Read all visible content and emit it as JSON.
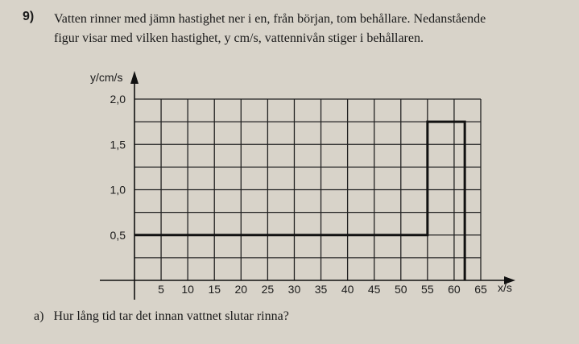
{
  "question": {
    "number": "9)",
    "text_line1": "Vatten rinner med jämn hastighet ner i en, från början, tom behållare. Nedanstående",
    "text_line2": "figur visar med vilken hastighet, y cm/s, vattennivån stiger i behållaren.",
    "part_a_label": "a)",
    "part_a_text": "Hur lång tid tar det innan vattnet slutar rinna?"
  },
  "chart_data": {
    "type": "line",
    "xlabel": "x/s",
    "ylabel": "y/cm/s",
    "xlim": [
      0,
      65
    ],
    "ylim": [
      0,
      2
    ],
    "grid": true,
    "x_ticks": [
      5,
      10,
      15,
      20,
      25,
      30,
      35,
      40,
      45,
      50,
      55,
      60,
      65
    ],
    "x_tick_labels": [
      "5",
      "10",
      "15",
      "20",
      "25",
      "30",
      "35",
      "40",
      "45",
      "50",
      "55",
      "60",
      "65"
    ],
    "y_ticks": [
      0.5,
      1.0,
      1.5,
      2.0
    ],
    "y_tick_labels": [
      "0,5",
      "1,0",
      "1,5",
      "2,0"
    ],
    "series": [
      {
        "x": [
          0,
          55,
          55,
          62,
          62
        ],
        "y": [
          0.5,
          0.5,
          1.75,
          1.75,
          0
        ]
      }
    ]
  }
}
